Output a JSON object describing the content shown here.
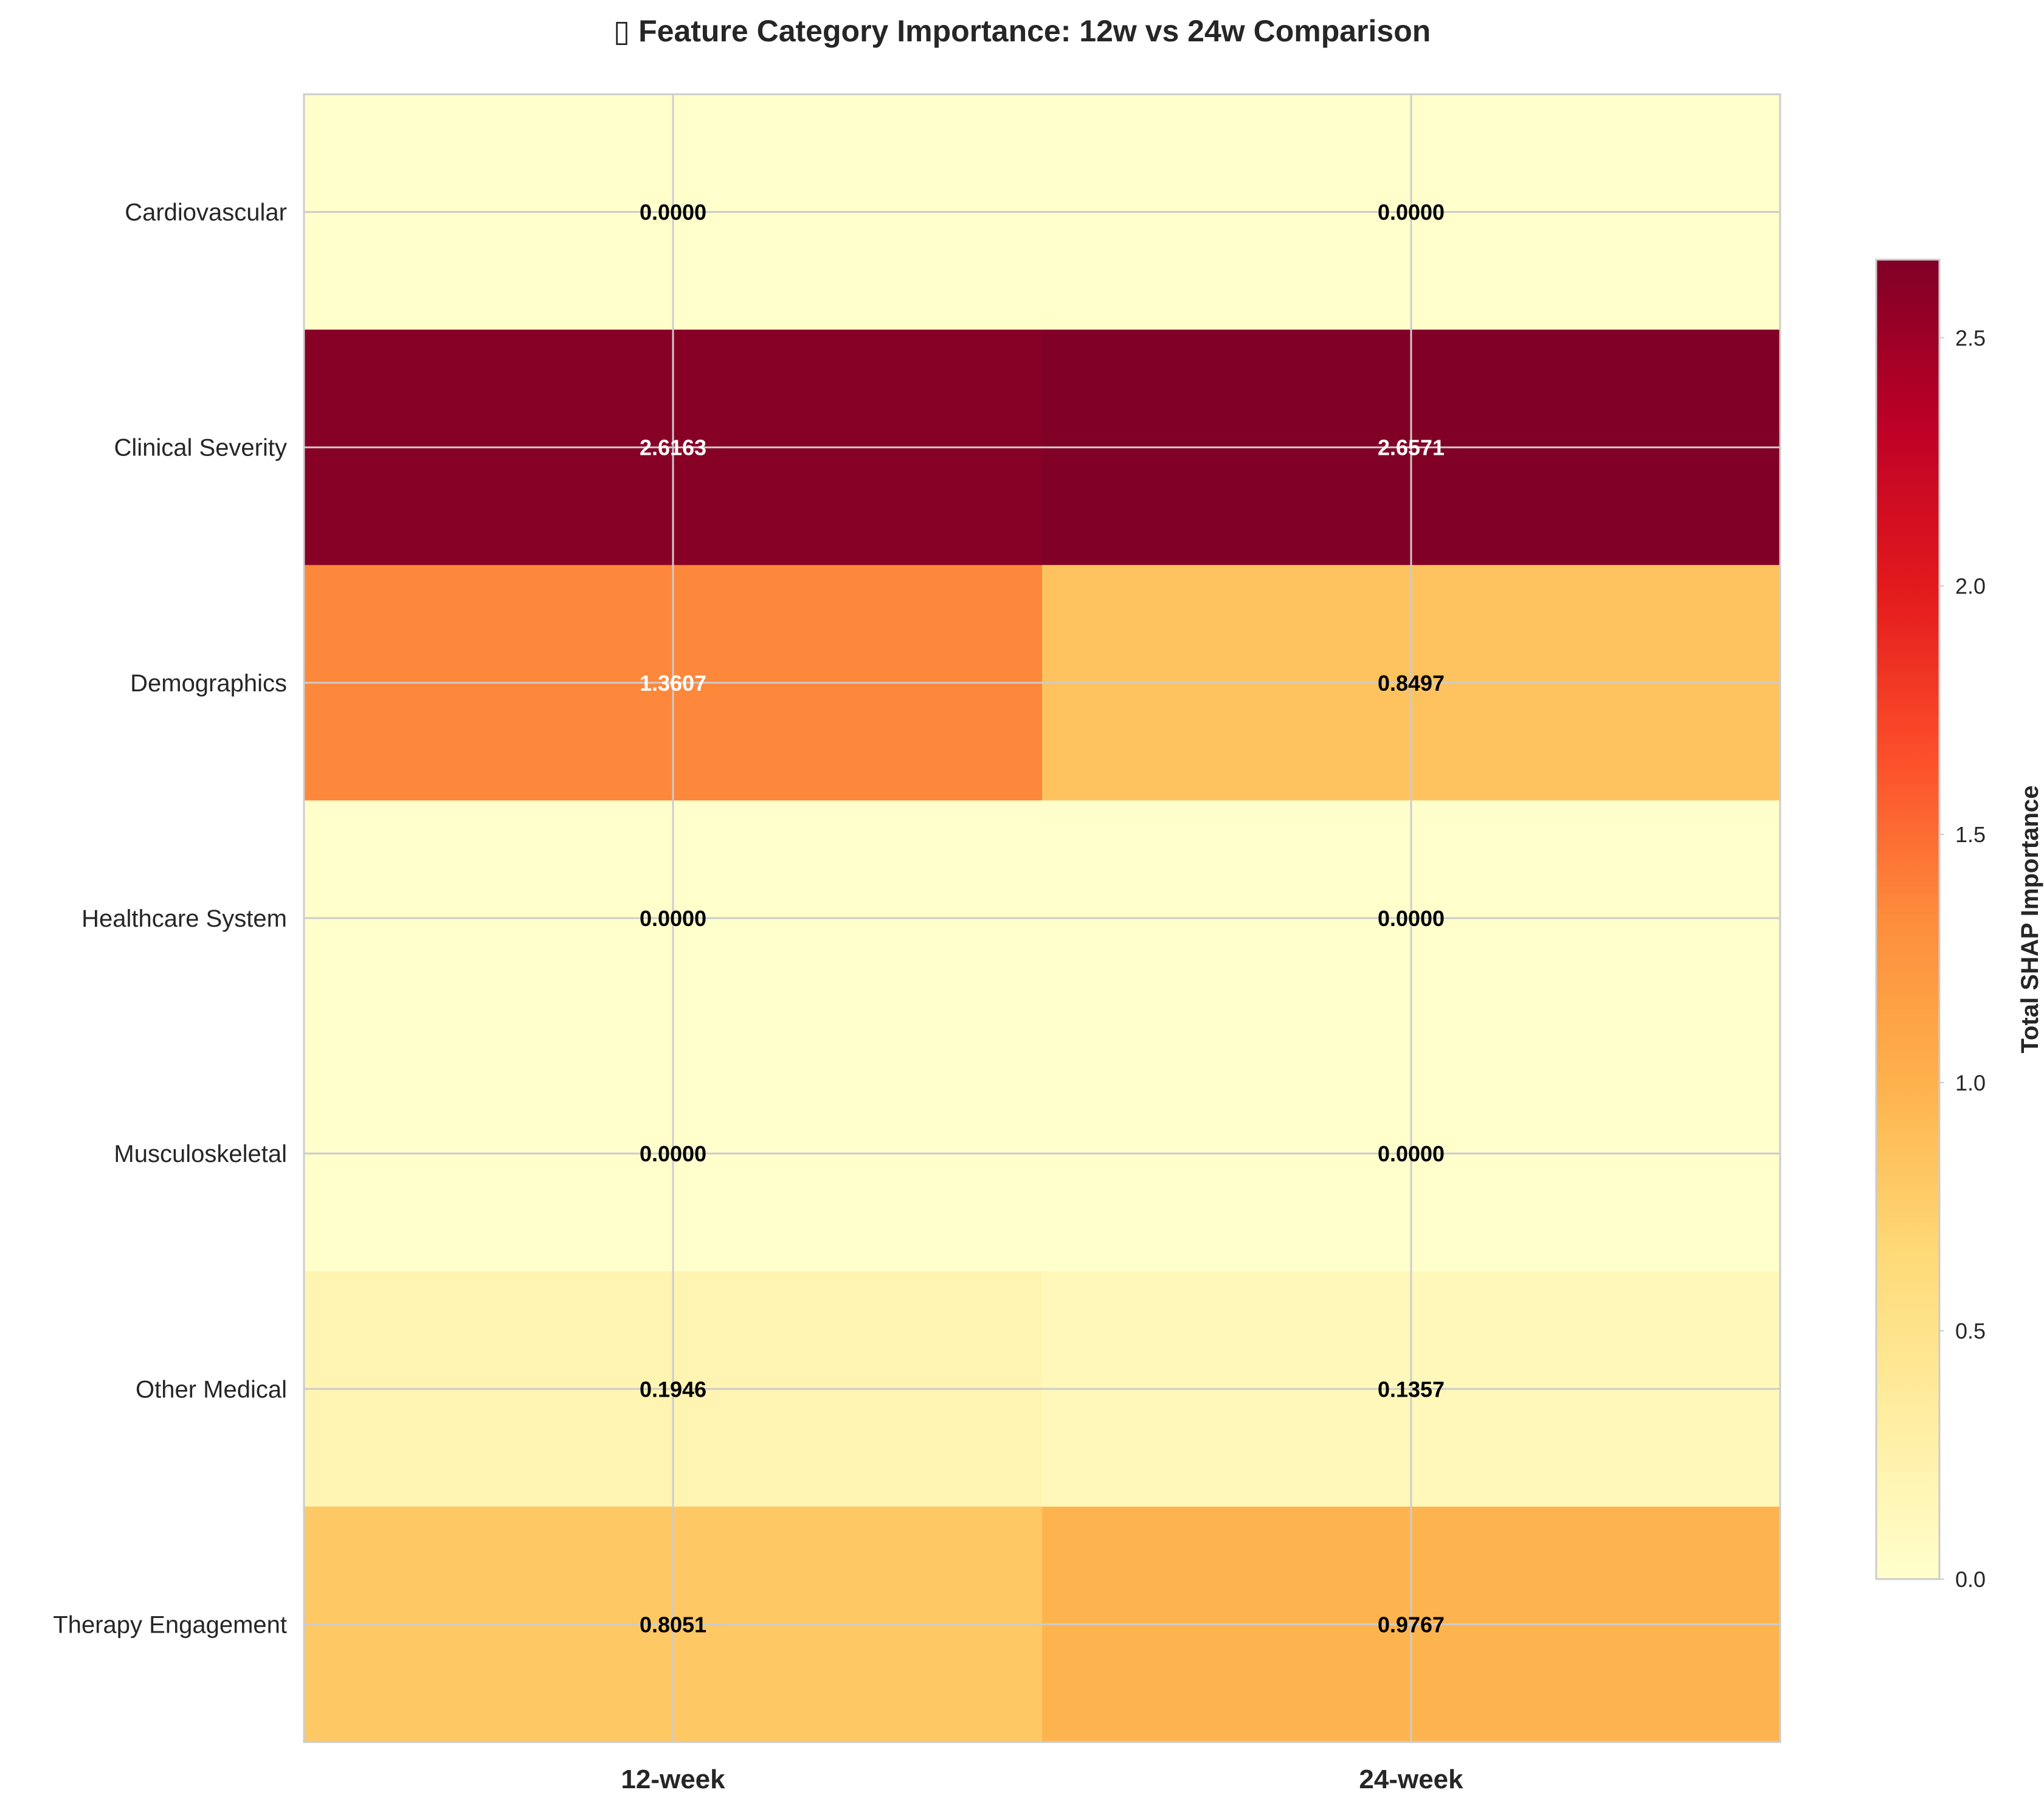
{
  "chart_data": {
    "type": "heatmap",
    "title": "Feature Category Importance: 12w vs 24w Comparison",
    "title_icon": "chart-emoji-missing-glyph",
    "columns": [
      "12-week",
      "24-week"
    ],
    "rows": [
      "Cardiovascular",
      "Clinical Severity",
      "Demographics",
      "Healthcare System",
      "Musculoskeletal",
      "Other Medical",
      "Therapy Engagement"
    ],
    "values": [
      [
        0.0,
        0.0
      ],
      [
        2.6163,
        2.6571
      ],
      [
        1.3607,
        0.8497
      ],
      [
        0.0,
        0.0
      ],
      [
        0.0,
        0.0
      ],
      [
        0.1946,
        0.1357
      ],
      [
        0.8051,
        0.9767
      ]
    ],
    "cell_labels": [
      [
        "0.0000",
        "0.0000"
      ],
      [
        "2.6163",
        "2.6571"
      ],
      [
        "1.3607",
        "0.8497"
      ],
      [
        "0.0000",
        "0.0000"
      ],
      [
        "0.0000",
        "0.0000"
      ],
      [
        "0.1946",
        "0.1357"
      ],
      [
        "0.8051",
        "0.9767"
      ]
    ],
    "colormap": "YlOrRd",
    "colormap_stops": [
      "#ffffcc",
      "#ffeda0",
      "#fed976",
      "#feb24c",
      "#fd8d3c",
      "#fc4e2a",
      "#e31a1c",
      "#bd0026",
      "#800026"
    ],
    "vmin": 0.0,
    "vmax": 2.6571,
    "colorbar": {
      "label": "Total SHAP Importance",
      "ticks": [
        0.0,
        0.5,
        1.0,
        1.5,
        2.0,
        2.5
      ],
      "tick_labels": [
        "0.0",
        "0.5",
        "1.0",
        "1.5",
        "2.0",
        "2.5"
      ]
    },
    "grid": true,
    "label_text_colors": {
      "dark": "#000000",
      "light": "#ffffff"
    },
    "grid_color": "#cccccc",
    "frame_color": "#cccccc"
  }
}
